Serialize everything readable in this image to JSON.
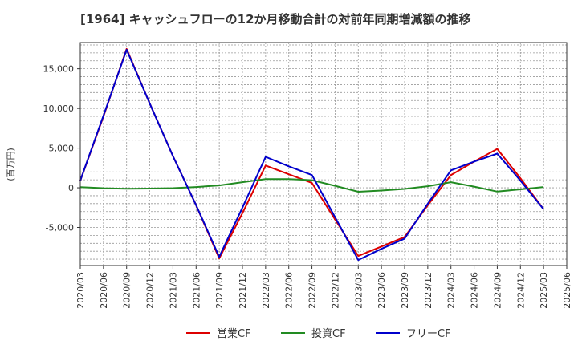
{
  "chart_data": {
    "type": "line",
    "title": "[1964]  キャッシュフローの12か月移動合計の対前年同期増減額の推移",
    "ylabel": "(百万円)",
    "xlabel": "",
    "ylim": [
      -9800,
      18300
    ],
    "yticks": [
      15000,
      10000,
      5000,
      0,
      -5000
    ],
    "ytick_labels": [
      "15,000",
      "10,000",
      "5,000",
      "0",
      "-5,000"
    ],
    "categories": [
      "2020/03",
      "2020/06",
      "2020/09",
      "2020/12",
      "2021/03",
      "2021/06",
      "2021/09",
      "2021/12",
      "2022/03",
      "2022/06",
      "2022/09",
      "2022/12",
      "2023/03",
      "2023/06",
      "2023/09",
      "2023/12",
      "2024/03",
      "2024/06",
      "2024/09",
      "2024/12",
      "2025/03",
      "2025/06"
    ],
    "series": [
      {
        "name": "営業CF",
        "color": "#dd0000",
        "values": [
          900,
          9000,
          17500,
          10600,
          4000,
          -2200,
          -8900,
          -3200,
          2800,
          1700,
          600,
          -4000,
          -8600,
          -7400,
          -6200,
          -2200,
          1600,
          3300,
          4900,
          1200,
          -2700,
          null
        ]
      },
      {
        "name": "投資CF",
        "color": "#228b22",
        "values": [
          80,
          -60,
          -120,
          -100,
          -50,
          100,
          300,
          700,
          1100,
          1100,
          950,
          250,
          -500,
          -350,
          -150,
          200,
          700,
          150,
          -480,
          -200,
          100,
          null
        ]
      },
      {
        "name": "フリーCF",
        "color": "#0000cc",
        "values": [
          900,
          9100,
          17400,
          10600,
          4000,
          -2200,
          -8700,
          -2500,
          3900,
          2700,
          1600,
          -3700,
          -9100,
          -7700,
          -6400,
          -2000,
          2200,
          3300,
          4300,
          900,
          -2700,
          null
        ]
      }
    ]
  }
}
